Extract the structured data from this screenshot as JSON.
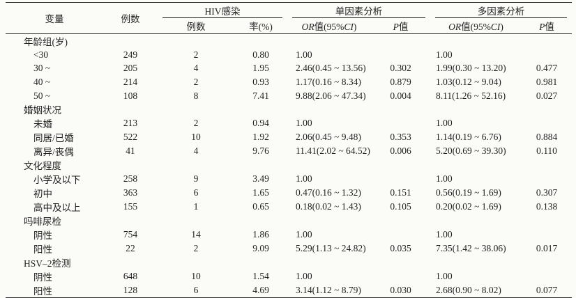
{
  "table": {
    "header": {
      "variable": "变量",
      "cases": "例数",
      "hiv_group": "HIV感染",
      "sub_cases": "例数",
      "sub_rate": "率(%)",
      "uni_group": "单因素分析",
      "multi_group": "多因素分析",
      "or_it1": "OR",
      "or_t1": "值(95%",
      "or_it2": "CI",
      "or_t2": ")",
      "p_it": "P",
      "p_t": "值"
    },
    "sections": [
      {
        "label": "年龄组(岁)",
        "rows": [
          {
            "var": "<30",
            "n": "249",
            "hiv_n": "2",
            "rate": "0.80",
            "or1": "1.00",
            "p1": "",
            "or2": "1.00",
            "p2": ""
          },
          {
            "var": "30 ~",
            "n": "205",
            "hiv_n": "4",
            "rate": "1.95",
            "or1": "2.46(0.45 ~ 13.56)",
            "p1": "0.302",
            "or2": "1.99(0.30 ~ 13.20)",
            "p2": "0.477"
          },
          {
            "var": "40 ~",
            "n": "214",
            "hiv_n": "2",
            "rate": "0.93",
            "or1": "1.17(0.16 ~ 8.34)",
            "p1": "0.879",
            "or2": "1.03(0.12 ~ 9.04)",
            "p2": "0.981"
          },
          {
            "var": "50 ~",
            "n": "108",
            "hiv_n": "8",
            "rate": "7.41",
            "or1": "9.88(2.06 ~ 47.34)",
            "p1": "0.004",
            "or2": "8.11(1.26 ~ 52.16)",
            "p2": "0.027"
          }
        ]
      },
      {
        "label": "婚姻状况",
        "rows": [
          {
            "var": "未婚",
            "n": "213",
            "hiv_n": "2",
            "rate": "0.94",
            "or1": "1.00",
            "p1": "",
            "or2": "1.00",
            "p2": ""
          },
          {
            "var": "同居/已婚",
            "n": "522",
            "hiv_n": "10",
            "rate": "1.92",
            "or1": "2.06(0.45 ~ 9.48)",
            "p1": "0.353",
            "or2": "1.14(0.19 ~ 6.76)",
            "p2": "0.884"
          },
          {
            "var": "离异/丧偶",
            "n": "41",
            "hiv_n": "4",
            "rate": "9.76",
            "or1": "11.41(2.02 ~ 64.52)",
            "p1": "0.006",
            "or2": "5.20(0.69 ~ 39.30)",
            "p2": "0.110"
          }
        ]
      },
      {
        "label": "文化程度",
        "rows": [
          {
            "var": "小学及以下",
            "n": "258",
            "hiv_n": "9",
            "rate": "3.49",
            "or1": "1.00",
            "p1": "",
            "or2": "1.00",
            "p2": ""
          },
          {
            "var": "初中",
            "n": "363",
            "hiv_n": "6",
            "rate": "1.65",
            "or1": "0.47(0.16 ~ 1.32)",
            "p1": "0.151",
            "or2": "0.56(0.19 ~ 1.69)",
            "p2": "0.307"
          },
          {
            "var": "高中及以上",
            "n": "155",
            "hiv_n": "1",
            "rate": "0.65",
            "or1": "0.18(0.02 ~ 1.43)",
            "p1": "0.105",
            "or2": "0.20(0.02 ~ 1.69)",
            "p2": "0.138"
          }
        ]
      },
      {
        "label": "吗啡尿检",
        "rows": [
          {
            "var": "阴性",
            "n": "754",
            "hiv_n": "14",
            "rate": "1.86",
            "or1": "1.00",
            "p1": "",
            "or2": "1.00",
            "p2": ""
          },
          {
            "var": "阳性",
            "n": "22",
            "hiv_n": "2",
            "rate": "9.09",
            "or1": "5.29(1.13 ~ 24.82)",
            "p1": "0.035",
            "or2": "7.35(1.42 ~ 38.06)",
            "p2": "0.017"
          }
        ]
      },
      {
        "label": "HSV–2检测",
        "rows": [
          {
            "var": "阴性",
            "n": "648",
            "hiv_n": "10",
            "rate": "1.54",
            "or1": "1.00",
            "p1": "",
            "or2": "1.00",
            "p2": ""
          },
          {
            "var": "阳性",
            "n": "128",
            "hiv_n": "6",
            "rate": "4.69",
            "or1": "3.14(1.12 ~ 8.79)",
            "p1": "0.030",
            "or2": "2.68(0.90 ~ 8.02)",
            "p2": "0.077"
          }
        ]
      }
    ]
  }
}
